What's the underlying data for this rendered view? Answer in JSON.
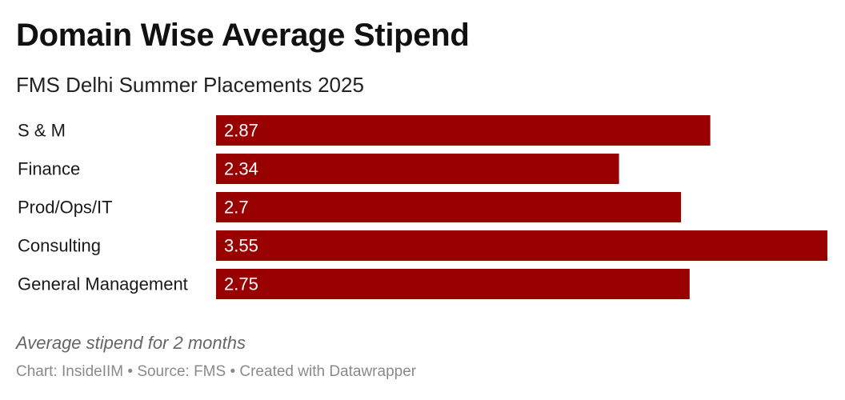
{
  "header": {
    "title": "Domain Wise Average Stipend",
    "subtitle": "FMS Delhi Summer Placements 2025"
  },
  "notes": {
    "caption": "Average stipend for 2 months",
    "credit": "Chart: InsideIIM • Source: FMS • Created with Datawrapper"
  },
  "colors": {
    "bar": "#990000"
  },
  "chart_data": {
    "type": "bar",
    "orientation": "horizontal",
    "categories": [
      "S & M",
      "Finance",
      "Prod/Ops/IT",
      "Consulting",
      "General Management"
    ],
    "values": [
      2.87,
      2.34,
      2.7,
      3.55,
      2.75
    ],
    "value_labels": [
      "2.87",
      "2.34",
      "2.7",
      "3.55",
      "2.75"
    ],
    "title": "Domain Wise Average Stipend",
    "subtitle": "FMS Delhi Summer Placements 2025",
    "xlim": [
      0,
      3.55
    ],
    "grid": false,
    "legend": "none"
  }
}
